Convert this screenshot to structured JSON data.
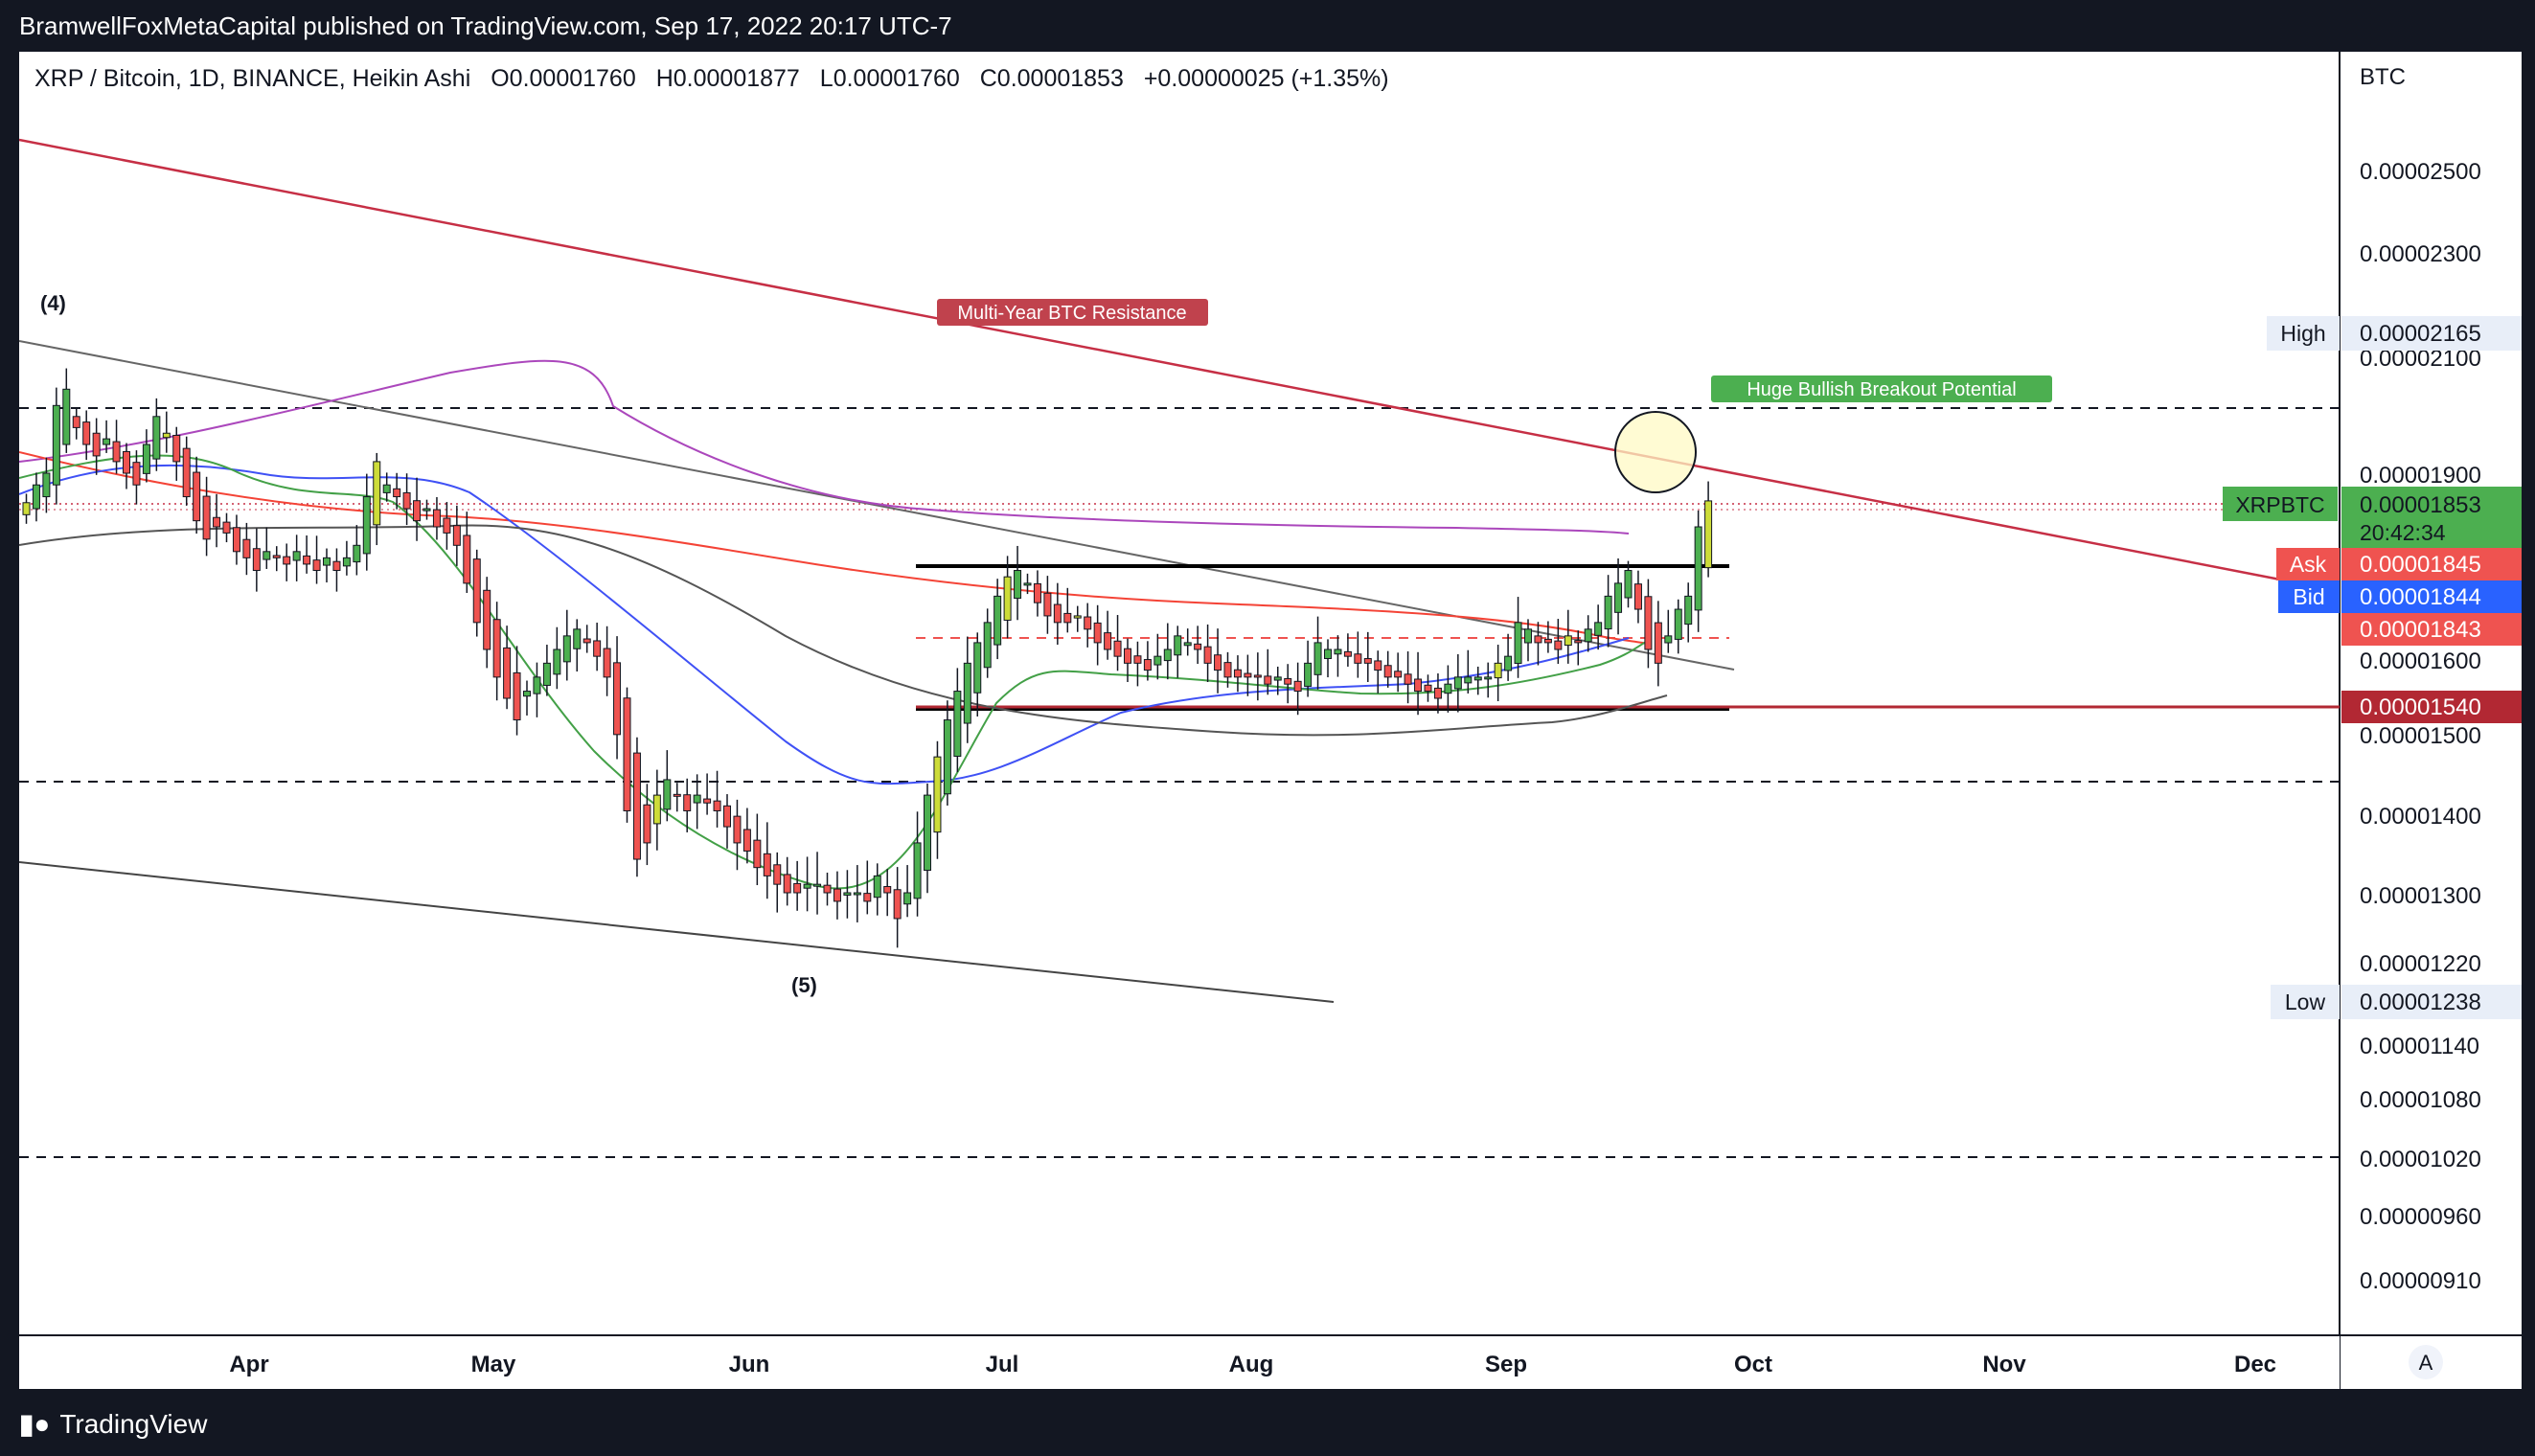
{
  "header": {
    "publisher_line": "BramwellFoxMetaCapital published on TradingView.com, Sep 17, 2022 20:17 UTC-7"
  },
  "legend": {
    "symbol": "XRP / Bitcoin, 1D, BINANCE, Heikin Ashi",
    "open": "O0.00001760",
    "high": "H0.00001877",
    "low": "L0.00001760",
    "close": "C0.00001853",
    "change": "+0.00000025 (+1.35%)"
  },
  "footer": {
    "brand": "TradingView"
  },
  "colors": {
    "bull": "#26a69a",
    "bull_ha": "#4caf50",
    "bear": "#ef5350",
    "resistance": "#c62f45",
    "support_hline": "#b22833",
    "ma_purple": "#ab47bc",
    "ma_red": "#f44336",
    "ma_blue": "#3f51f5",
    "ma_green": "#43a047",
    "ma_gray": "#555555",
    "label_green": "#4caf50",
    "label_red": "#c0424d",
    "bid": "#2962ff"
  },
  "chart_data": {
    "type": "candlestick",
    "style": "Heikin Ashi",
    "currency": "BTC",
    "x_labels": [
      "Apr",
      "May",
      "Jun",
      "Jul",
      "Aug",
      "Sep",
      "Oct",
      "Nov",
      "Dec"
    ],
    "y_ticks": [
      "0.00002500",
      "0.00002300",
      "0.00002100",
      "0.00001900",
      "0.00001600",
      "0.00001500",
      "0.00001400",
      "0.00001300",
      "0.00001220",
      "0.00001140",
      "0.00001080",
      "0.00001020",
      "0.00000960",
      "0.00000910"
    ],
    "price_tags": {
      "high_label": "High",
      "high_value": "0.00002165",
      "symbol": "XRPBTC",
      "last_value": "0.00001853",
      "countdown": "20:42:34",
      "ask_label": "Ask",
      "ask_value": "0.00001845",
      "bid_label": "Bid",
      "bid_value": "0.00001844",
      "ma_value": "0.00001843",
      "support_value": "0.00001540",
      "low_label": "Low",
      "low_value": "0.00001238"
    },
    "annotations": {
      "resistance_label": "Multi-Year BTC Resistance",
      "breakout_label": "Huge Bullish Breakout Potential",
      "wave4": "(4)",
      "wave5": "(5)"
    },
    "scale_button": "A",
    "close_series": [
      1.85,
      1.88,
      1.9,
      2.02,
      2.05,
      1.98,
      1.95,
      1.93,
      1.96,
      1.92,
      1.9,
      1.88,
      1.95,
      2.0,
      1.97,
      1.92,
      1.86,
      1.82,
      1.79,
      1.81,
      1.8,
      1.77,
      1.76,
      1.74,
      1.77,
      1.76,
      1.75,
      1.77,
      1.75,
      1.74,
      1.76,
      1.74,
      1.76,
      1.78,
      1.86,
      1.92,
      1.88,
      1.86,
      1.84,
      1.82,
      1.84,
      1.81,
      1.8,
      1.78,
      1.72,
      1.66,
      1.62,
      1.58,
      1.55,
      1.52,
      1.56,
      1.58,
      1.6,
      1.62,
      1.64,
      1.65,
      1.63,
      1.61,
      1.58,
      1.5,
      1.4,
      1.34,
      1.36,
      1.42,
      1.44,
      1.42,
      1.4,
      1.42,
      1.41,
      1.4,
      1.38,
      1.36,
      1.35,
      1.33,
      1.32,
      1.31,
      1.3,
      1.3,
      1.31,
      1.31,
      1.3,
      1.29,
      1.3,
      1.3,
      1.29,
      1.32,
      1.3,
      1.27,
      1.3,
      1.36,
      1.42,
      1.47,
      1.52,
      1.56,
      1.6,
      1.63,
      1.66,
      1.7,
      1.73,
      1.74,
      1.72,
      1.69,
      1.67,
      1.66,
      1.66,
      1.67,
      1.65,
      1.63,
      1.62,
      1.61,
      1.6,
      1.6,
      1.59,
      1.61,
      1.62,
      1.64,
      1.63,
      1.62,
      1.6,
      1.59,
      1.58,
      1.58,
      1.58,
      1.58,
      1.57,
      1.58,
      1.57,
      1.56,
      1.6,
      1.63,
      1.62,
      1.62,
      1.61,
      1.6,
      1.6,
      1.59,
      1.58,
      1.58,
      1.57,
      1.56,
      1.56,
      1.55,
      1.57,
      1.58,
      1.58,
      1.58,
      1.58,
      1.6,
      1.61,
      1.66,
      1.65,
      1.63,
      1.63,
      1.62,
      1.64,
      1.63,
      1.65,
      1.66,
      1.7,
      1.72,
      1.74,
      1.68,
      1.62,
      1.6,
      1.64,
      1.68,
      1.7,
      1.81,
      1.853
    ]
  }
}
